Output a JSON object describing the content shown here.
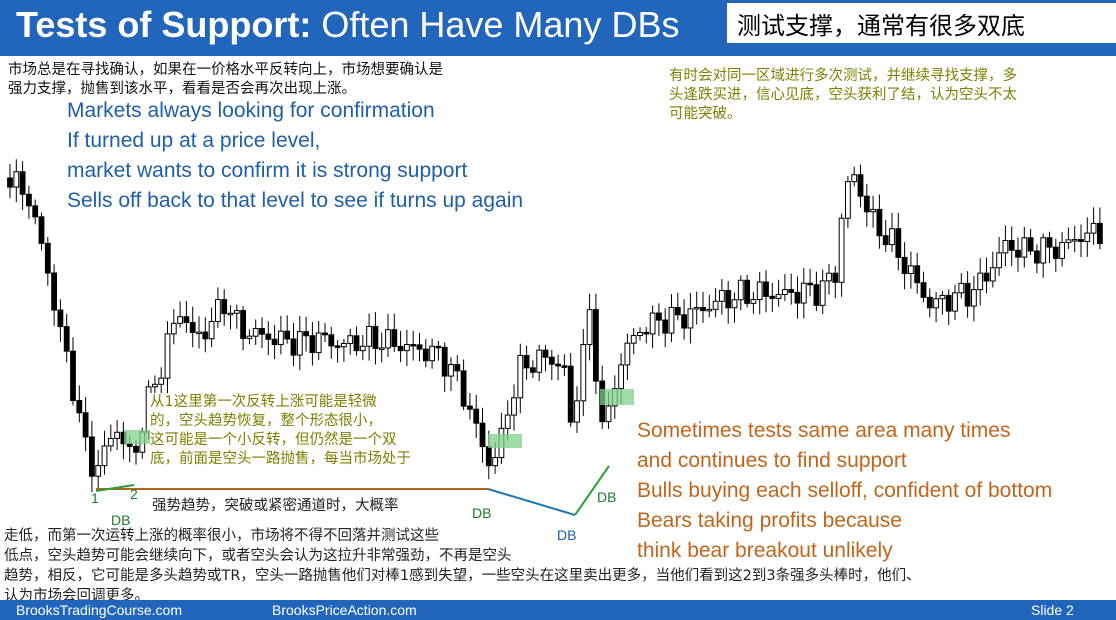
{
  "header": {
    "title_bold": "Tests of Support:",
    "title_rest": " Often Have Many DBs",
    "title_cn": "测试支撑，通常有很多双底",
    "bg_color": "#2266bb"
  },
  "note_top_left_cn": [
    "市场总是在寻找确认，如果在一价格水平反转向上，市场想要确认是",
    "强力支撑，抛售到该水平，看看是否会再次出现上涨。"
  ],
  "note_top_left_en": [
    "Markets always looking for confirmation",
    "If turned up at a price level,",
    "market wants to confirm it is strong support",
    "Sells off back to that level to see if turns up again"
  ],
  "note_top_right_cn": [
    "有时会对同一区域进行多次测试，并继续寻找支撑，多",
    "头逢跌买进，信心见底，空头获利了结，认为空头不太",
    "可能突破。"
  ],
  "note_middle_cn": [
    "从1这里第一次反转上涨可能是轻微",
    "的，空头趋势恢复，整个形态很小，",
    "这可能是一个小反转，但仍然是一个双",
    "底，前面是空头一路抛售，每当市场处于"
  ],
  "note_mid_line_cn": "强势趋势，突破或紧密通道时，大概率",
  "note_bottom_cn": [
    "走低，而第一次运转上涨的概率很小，市场将不得不回落并测试这些",
    "低点，空头趋势可能会继续向下，或者空头会认为这拉升非常强劲，不再是空头",
    "趋势，相反，它可能是多头趋势或TR，空头一路抛售他们对棒1感到失望，一些空头在这里卖出更多，当他们看到这2到3条强多头棒时，他们、",
    "认为市场会回调更多。"
  ],
  "note_right_en": [
    "Sometimes tests same area many times",
    "and continues to find support",
    "Bulls buying each selloff, confident of bottom",
    "Bears taking profits because",
    "think bear breakout unlikely"
  ],
  "labels": {
    "bar1": "1",
    "bar2": "2",
    "db1": "DB",
    "db2": "DB",
    "db3": "DB",
    "db4": "DB"
  },
  "footer": {
    "left": "BrooksTradingCourse.com",
    "center": "BrooksPriceAction.com",
    "right": "Slide  2"
  },
  "colors": {
    "accent_blue": "#2266bb",
    "text_blue": "#1f5fa8",
    "text_orange": "#c0661c",
    "text_olive": "#7f7f00",
    "line_brown": "#b0651a",
    "line_blue": "#1f77b4",
    "line_green": "#2e9e3a",
    "zone_green": "#7fd08a"
  }
}
